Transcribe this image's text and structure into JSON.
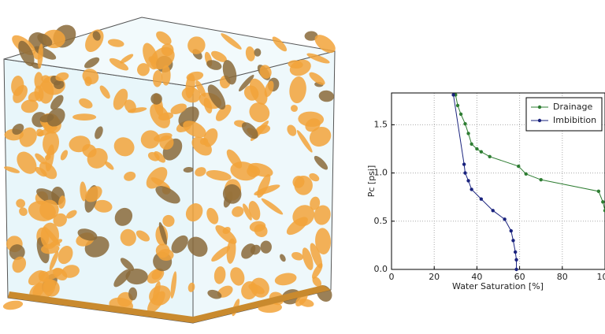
{
  "chart_data": {
    "type": "line",
    "xlabel": "Water Saturation [%]",
    "ylabel": "Pc [psi]",
    "xlim": [
      0,
      100
    ],
    "ylim": [
      0,
      1.83
    ],
    "xticks": [
      0,
      20,
      40,
      60,
      80,
      100
    ],
    "yticks": [
      {
        "value": 0,
        "label": "0.0"
      },
      0.5,
      {
        "value": 1,
        "label": "1.0"
      },
      1.5
    ],
    "grid": true,
    "legend": "upper right",
    "series": [
      {
        "name": "Drainage",
        "color": "#2e7d32",
        "x": [
          30,
          31,
          32.5,
          34.5,
          36,
          37.5,
          40,
          42,
          46,
          59.5,
          63,
          70,
          97,
          99,
          100
        ],
        "values": [
          1.81,
          1.7,
          1.61,
          1.51,
          1.41,
          1.3,
          1.25,
          1.22,
          1.17,
          1.07,
          0.99,
          0.93,
          0.81,
          0.7,
          0.61
        ]
      },
      {
        "name": "Imbibition",
        "color": "#1a237e",
        "x": [
          29,
          34,
          34.5,
          36,
          37.5,
          42,
          47.5,
          53,
          56,
          57,
          58,
          58.5,
          58.5
        ],
        "values": [
          1.81,
          1.09,
          1,
          0.92,
          0.83,
          0.73,
          0.61,
          0.52,
          0.4,
          0.3,
          0.18,
          0.1,
          0
        ]
      }
    ]
  }
}
